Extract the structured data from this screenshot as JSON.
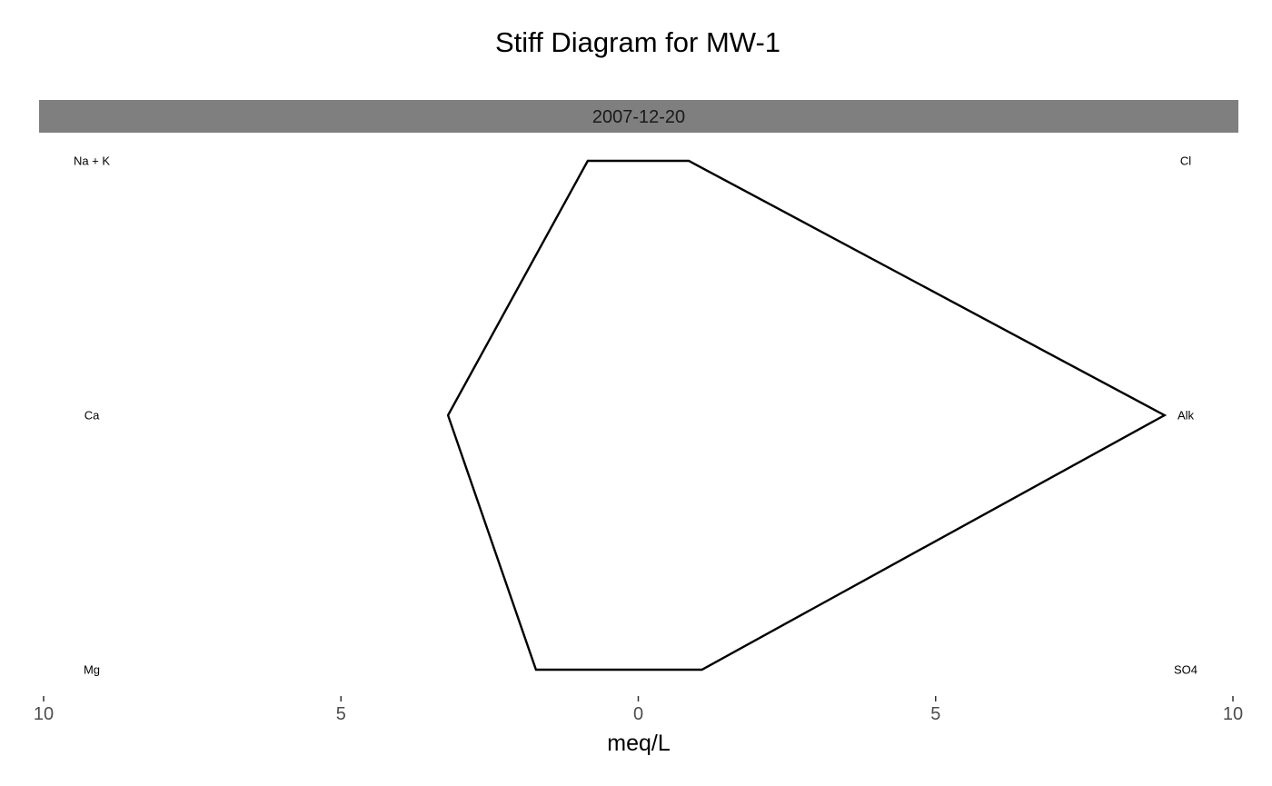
{
  "chart_data": {
    "type": "stiff",
    "title": "Stiff Diagram for MW-1",
    "facet_label": "2007-12-20",
    "xlabel": "meq/L",
    "ylabel": "",
    "xlim": [
      -10,
      10
    ],
    "x_ticks": [
      {
        "value": -10,
        "label": "10"
      },
      {
        "value": -5,
        "label": "5"
      },
      {
        "value": 0,
        "label": "0"
      },
      {
        "value": 5,
        "label": "5"
      },
      {
        "value": 10,
        "label": "10"
      }
    ],
    "grid": false,
    "levels": [
      "top",
      "middle",
      "bottom"
    ],
    "cations": [
      {
        "name": "Na + K",
        "level": "top",
        "value": 0.85
      },
      {
        "name": "Ca",
        "level": "middle",
        "value": 3.2
      },
      {
        "name": "Mg",
        "level": "bottom",
        "value": 1.72
      }
    ],
    "anions": [
      {
        "name": "Cl",
        "level": "top",
        "value": 0.85
      },
      {
        "name": "Alk",
        "level": "middle",
        "value": 8.85
      },
      {
        "name": "SO4",
        "level": "bottom",
        "value": 1.07
      }
    ],
    "colors": {
      "outline": "#000000",
      "strip_background": "#7f7f7f",
      "background": "#ffffff"
    }
  }
}
